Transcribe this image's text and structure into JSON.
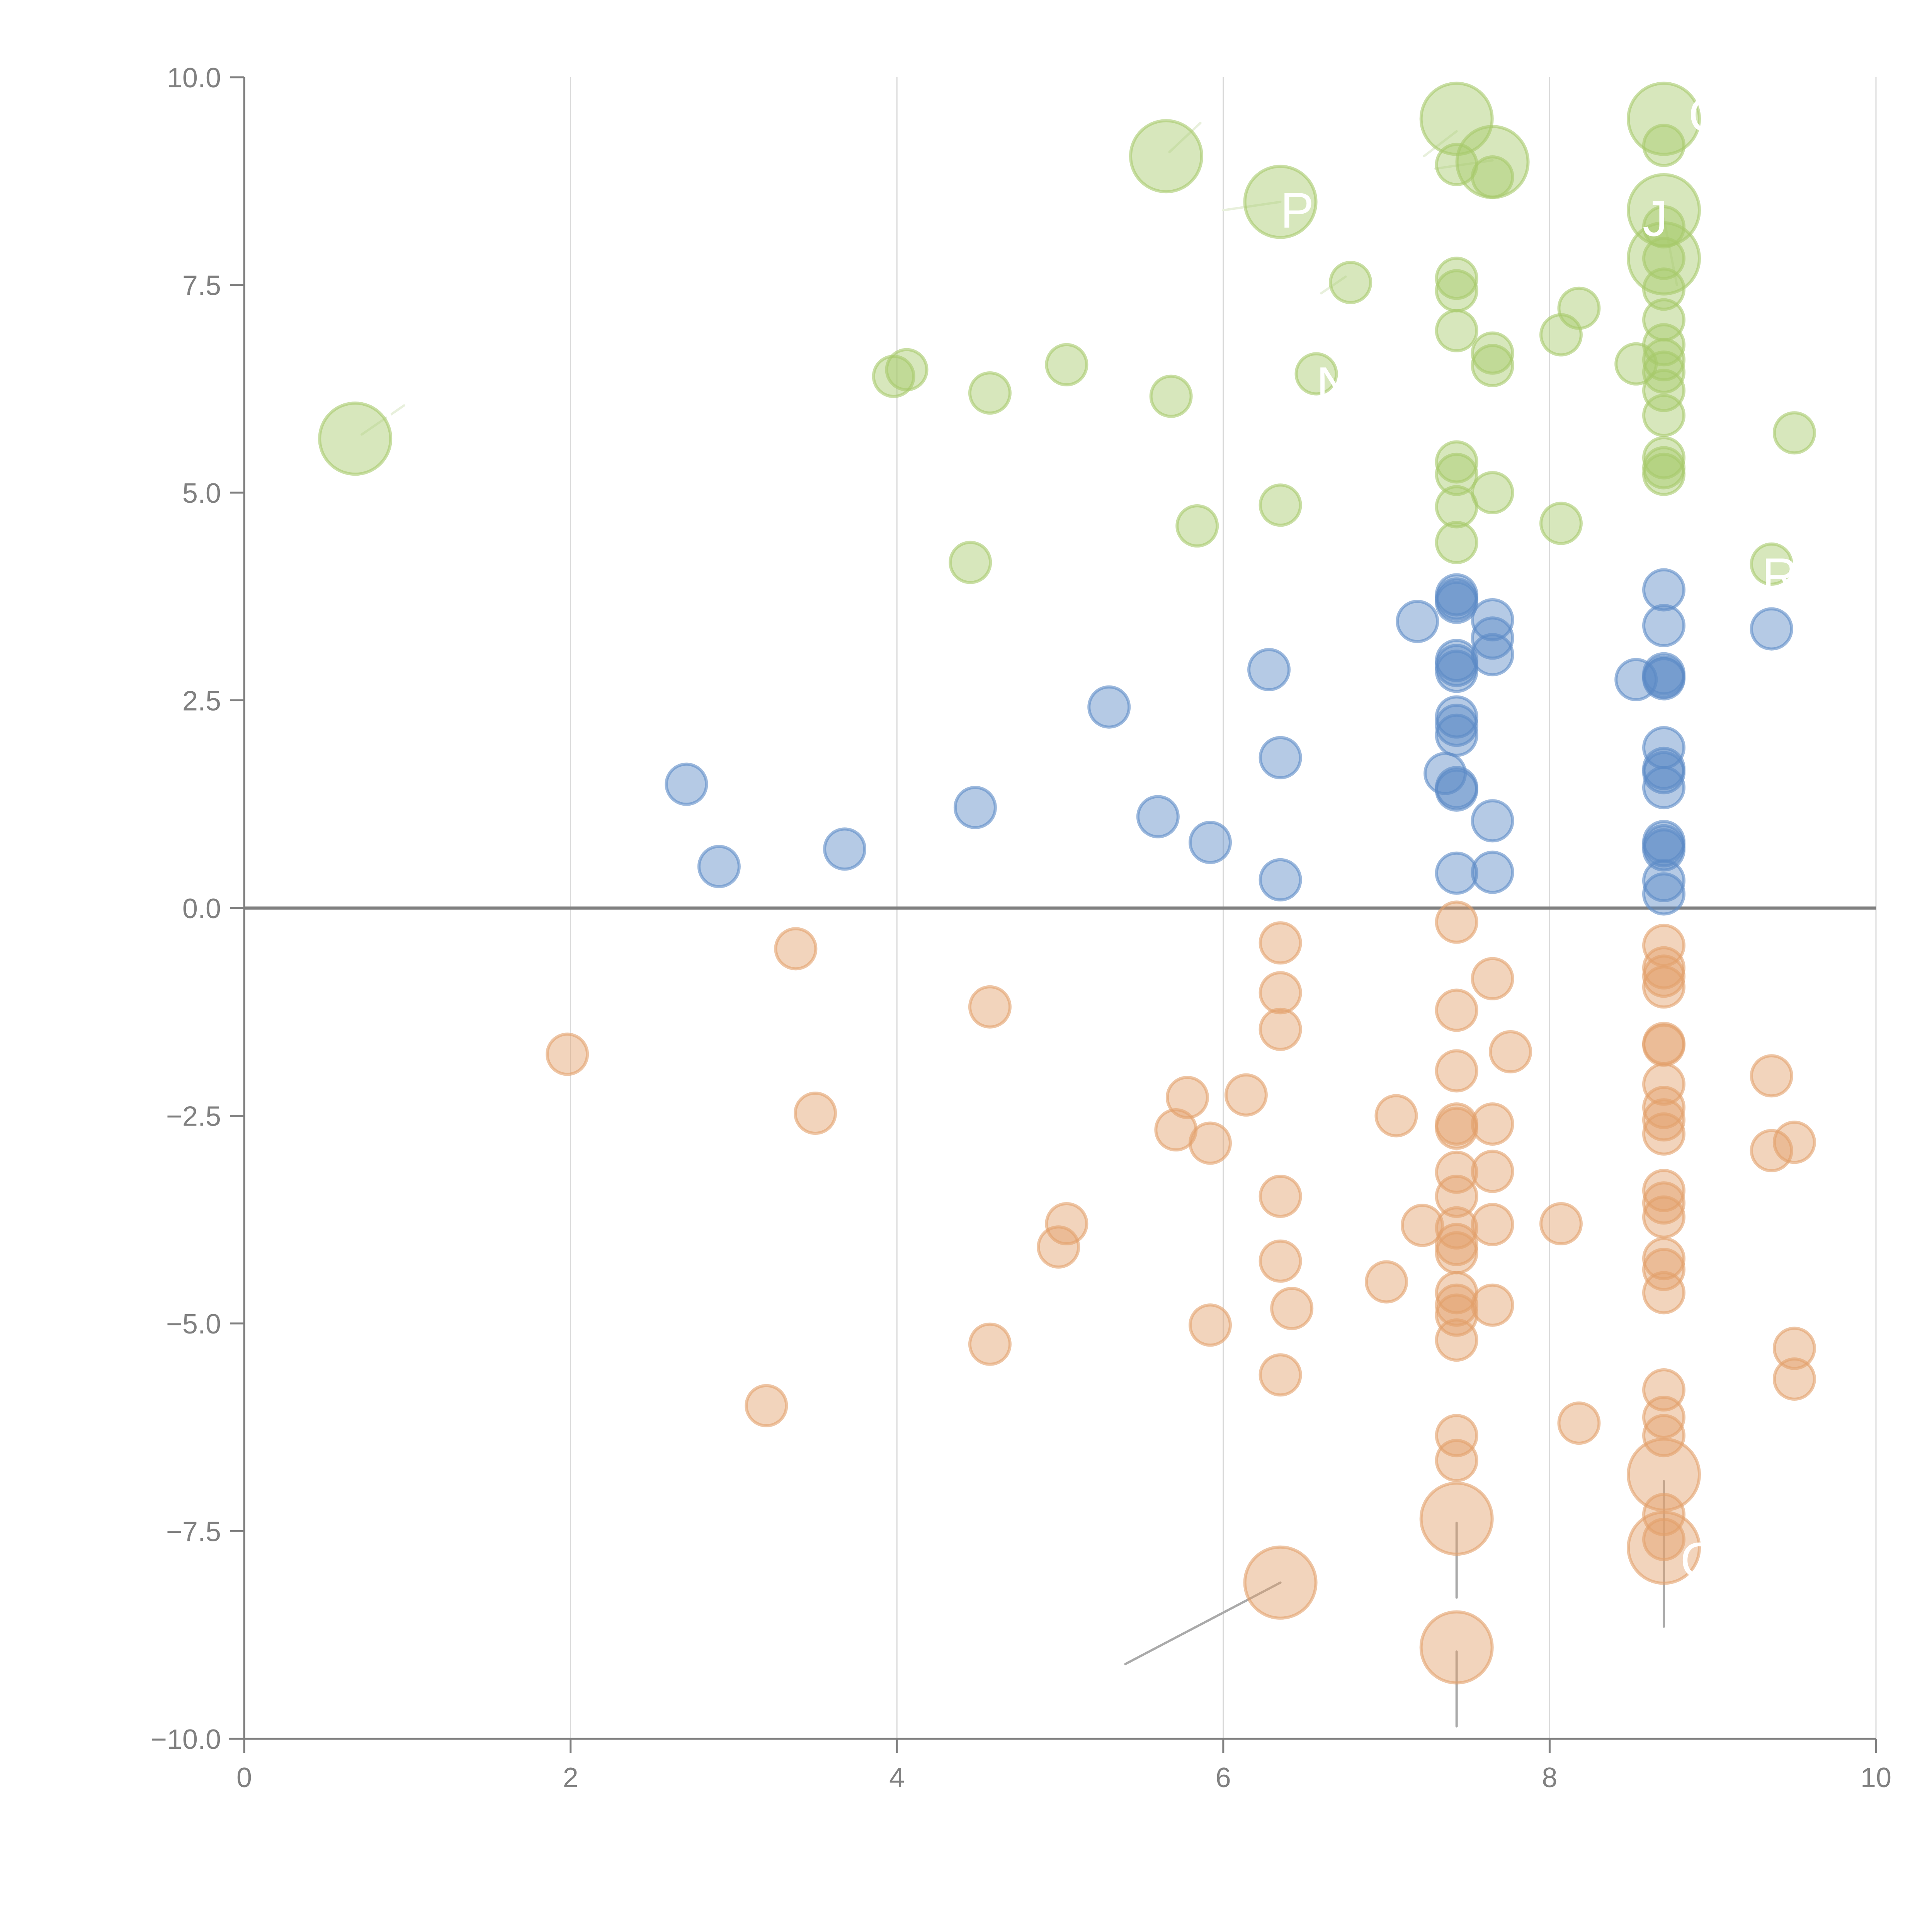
{
  "chart_data": {
    "type": "scatter",
    "title": "",
    "xlabel": "",
    "ylabel": "",
    "xlim": [
      0,
      10
    ],
    "ylim": [
      -10,
      10
    ],
    "x_ticks": [
      "0",
      "2",
      "4",
      "6",
      "8",
      "10"
    ],
    "x_tick_values": [
      0,
      2,
      4,
      6,
      8,
      10
    ],
    "y_ticks": [
      "10.0",
      "7.5",
      "5.0",
      "2.5",
      "0.0",
      "−2.5",
      "−5.0",
      "−7.5",
      "−10.0"
    ],
    "y_tick_values": [
      10,
      7.5,
      5,
      2.5,
      0,
      -2.5,
      -5,
      -7.5,
      -10
    ],
    "grid": "vertical lines at x ticks",
    "zero_line": true,
    "legend": "none",
    "colors": {
      "green": "#a6c96a",
      "blue": "#5b8ac6",
      "orange": "#e3a06a",
      "axis": "#808080",
      "grid": "#d9d9d9",
      "leader": "#aaaaaa",
      "label": "#ffffff"
    },
    "series": [
      {
        "name": "green",
        "color": "#a6c96a",
        "points": [
          [
            0.68,
            5.65,
            2
          ],
          [
            5.65,
            9.05,
            2
          ],
          [
            6.35,
            8.5,
            2
          ],
          [
            7.43,
            9.5,
            2
          ],
          [
            7.65,
            8.98,
            2
          ],
          [
            8.7,
            9.5,
            2
          ],
          [
            8.7,
            8.4,
            2
          ],
          [
            8.7,
            7.82,
            2
          ],
          [
            7.43,
            8.95,
            1
          ],
          [
            7.65,
            8.8,
            1
          ],
          [
            8.7,
            9.18,
            1
          ],
          [
            8.7,
            8.2,
            1
          ],
          [
            8.7,
            7.82,
            1
          ],
          [
            8.7,
            7.45,
            1
          ],
          [
            8.7,
            7.08,
            1
          ],
          [
            8.7,
            6.78,
            1
          ],
          [
            8.7,
            6.6,
            1
          ],
          [
            8.7,
            6.45,
            1
          ],
          [
            8.7,
            6.23,
            1
          ],
          [
            8.7,
            5.93,
            1
          ],
          [
            8.7,
            5.42,
            1
          ],
          [
            8.7,
            5.3,
            1
          ],
          [
            8.7,
            5.22,
            1
          ],
          [
            6.78,
            7.53,
            1
          ],
          [
            7.43,
            7.58,
            1
          ],
          [
            7.43,
            7.43,
            1
          ],
          [
            8.18,
            7.22,
            1
          ],
          [
            7.43,
            6.95,
            1
          ],
          [
            8.07,
            6.9,
            1
          ],
          [
            7.65,
            6.68,
            1
          ],
          [
            7.65,
            6.53,
            1
          ],
          [
            8.53,
            6.55,
            1
          ],
          [
            3.98,
            6.4,
            1
          ],
          [
            4.06,
            6.48,
            1
          ],
          [
            4.57,
            6.2,
            1
          ],
          [
            5.04,
            6.54,
            1
          ],
          [
            5.68,
            6.16,
            1
          ],
          [
            6.57,
            6.43,
            1
          ],
          [
            9.5,
            5.72,
            1
          ],
          [
            7.43,
            5.37,
            1
          ],
          [
            7.43,
            5.22,
            1
          ],
          [
            7.65,
            5.0,
            1
          ],
          [
            7.43,
            4.83,
            1
          ],
          [
            6.35,
            4.85,
            1
          ],
          [
            5.84,
            4.6,
            1
          ],
          [
            8.07,
            4.63,
            1
          ],
          [
            7.43,
            4.4,
            1
          ],
          [
            4.45,
            4.16,
            1
          ],
          [
            9.36,
            4.14,
            1
          ]
        ]
      },
      {
        "name": "blue",
        "color": "#5b8ac6",
        "points": [
          [
            7.43,
            3.77,
            1
          ],
          [
            7.43,
            3.72,
            1
          ],
          [
            7.43,
            3.68,
            1
          ],
          [
            7.19,
            3.45,
            1
          ],
          [
            7.65,
            3.47,
            1
          ],
          [
            7.65,
            3.25,
            1
          ],
          [
            7.65,
            3.05,
            1
          ],
          [
            7.43,
            2.98,
            1
          ],
          [
            7.43,
            2.92,
            1
          ],
          [
            7.43,
            2.85,
            1
          ],
          [
            6.28,
            2.87,
            1
          ],
          [
            5.3,
            2.42,
            1
          ],
          [
            7.43,
            2.3,
            1
          ],
          [
            7.43,
            2.2,
            1
          ],
          [
            7.43,
            2.08,
            1
          ],
          [
            7.36,
            1.62,
            1
          ],
          [
            7.43,
            1.45,
            1
          ],
          [
            7.43,
            1.42,
            1
          ],
          [
            7.65,
            1.05,
            1
          ],
          [
            7.43,
            0.42,
            1
          ],
          [
            7.65,
            0.43,
            1
          ],
          [
            8.7,
            3.83,
            1
          ],
          [
            8.7,
            3.4,
            1
          ],
          [
            8.53,
            2.75,
            1
          ],
          [
            8.7,
            2.82,
            1
          ],
          [
            8.7,
            2.78,
            1
          ],
          [
            8.7,
            2.76,
            1
          ],
          [
            9.36,
            3.36,
            1
          ],
          [
            8.7,
            1.93,
            1
          ],
          [
            8.7,
            1.68,
            1
          ],
          [
            8.7,
            1.63,
            1
          ],
          [
            8.7,
            1.45,
            1
          ],
          [
            8.7,
            0.8,
            1
          ],
          [
            8.7,
            0.75,
            1
          ],
          [
            8.7,
            0.7,
            1
          ],
          [
            8.7,
            0.33,
            1
          ],
          [
            8.7,
            0.17,
            1
          ],
          [
            2.71,
            1.49,
            1
          ],
          [
            2.91,
            0.5,
            1
          ],
          [
            3.68,
            0.71,
            1
          ],
          [
            4.48,
            1.21,
            1
          ],
          [
            5.6,
            1.1,
            1
          ],
          [
            5.92,
            0.79,
            1
          ],
          [
            6.35,
            1.81,
            1
          ],
          [
            6.35,
            0.34,
            1
          ]
        ]
      },
      {
        "name": "orange",
        "color": "#e3a06a",
        "points": [
          [
            7.43,
            -0.17,
            1
          ],
          [
            6.35,
            -0.42,
            1
          ],
          [
            6.35,
            -1.02,
            1
          ],
          [
            6.35,
            -1.46,
            1
          ],
          [
            3.38,
            -0.49,
            1
          ],
          [
            4.57,
            -1.19,
            1
          ],
          [
            1.98,
            -1.76,
            1
          ],
          [
            3.5,
            -2.47,
            1
          ],
          [
            7.65,
            -0.85,
            1
          ],
          [
            7.43,
            -1.23,
            1
          ],
          [
            7.76,
            -1.73,
            1
          ],
          [
            7.43,
            -1.96,
            1
          ],
          [
            7.06,
            -2.5,
            1
          ],
          [
            7.43,
            -2.6,
            1
          ],
          [
            7.43,
            -2.65,
            1
          ],
          [
            7.65,
            -2.6,
            1
          ],
          [
            7.43,
            -3.18,
            1
          ],
          [
            7.65,
            -3.17,
            1
          ],
          [
            7.43,
            -3.47,
            1
          ],
          [
            7.22,
            -3.82,
            1
          ],
          [
            7.43,
            -3.85,
            1
          ],
          [
            7.43,
            -4.05,
            1
          ],
          [
            7.43,
            -4.15,
            1
          ],
          [
            7.65,
            -3.81,
            1
          ],
          [
            7.0,
            -4.5,
            1
          ],
          [
            7.43,
            -4.63,
            1
          ],
          [
            7.43,
            -4.78,
            1
          ],
          [
            7.43,
            -4.9,
            1
          ],
          [
            7.65,
            -4.78,
            1
          ],
          [
            7.43,
            -5.2,
            1
          ],
          [
            7.43,
            -6.35,
            1
          ],
          [
            7.43,
            -6.65,
            1
          ],
          [
            5.78,
            -2.28,
            1
          ],
          [
            6.14,
            -2.25,
            1
          ],
          [
            5.71,
            -2.67,
            1
          ],
          [
            5.92,
            -2.83,
            1
          ],
          [
            6.35,
            -3.47,
            1
          ],
          [
            5.04,
            -3.8,
            1
          ],
          [
            4.99,
            -4.08,
            1
          ],
          [
            6.35,
            -4.25,
            1
          ],
          [
            6.42,
            -4.82,
            1
          ],
          [
            5.92,
            -5.02,
            1
          ],
          [
            4.57,
            -5.25,
            1
          ],
          [
            6.35,
            -5.62,
            1
          ],
          [
            3.2,
            -5.99,
            1
          ],
          [
            8.07,
            -3.8,
            1
          ],
          [
            8.18,
            -6.2,
            1
          ],
          [
            8.7,
            -0.45,
            1
          ],
          [
            8.7,
            -0.72,
            1
          ],
          [
            8.7,
            -0.82,
            1
          ],
          [
            8.7,
            -0.95,
            1
          ],
          [
            8.7,
            -1.63,
            1
          ],
          [
            8.7,
            -1.65,
            1
          ],
          [
            8.7,
            -2.12,
            1
          ],
          [
            8.7,
            -2.4,
            1
          ],
          [
            8.7,
            -2.55,
            1
          ],
          [
            8.7,
            -2.72,
            1
          ],
          [
            8.7,
            -3.4,
            1
          ],
          [
            8.7,
            -3.55,
            1
          ],
          [
            8.7,
            -3.72,
            1
          ],
          [
            8.7,
            -4.22,
            1
          ],
          [
            8.7,
            -4.35,
            1
          ],
          [
            8.7,
            -4.63,
            1
          ],
          [
            8.7,
            -5.8,
            1
          ],
          [
            8.7,
            -6.13,
            1
          ],
          [
            8.7,
            -6.35,
            1
          ],
          [
            8.7,
            -7.3,
            1
          ],
          [
            8.7,
            -7.6,
            1
          ],
          [
            9.36,
            -2.02,
            1
          ],
          [
            9.36,
            -2.92,
            1
          ],
          [
            9.5,
            -2.82,
            1
          ],
          [
            9.5,
            -5.3,
            1
          ],
          [
            9.5,
            -5.67,
            1
          ],
          [
            6.35,
            -8.12,
            2
          ],
          [
            7.43,
            -7.35,
            2
          ],
          [
            7.43,
            -8.9,
            2
          ],
          [
            8.7,
            -6.82,
            2
          ],
          [
            8.7,
            -7.7,
            2
          ]
        ]
      }
    ],
    "annotations": [
      {
        "text": "C",
        "x": 0.68,
        "y": 5.65,
        "lx": 0.85,
        "ly": 6.0,
        "color": "#ffffff"
      },
      {
        "text": "P",
        "x": 6.35,
        "y": 8.5,
        "lx": 6.35,
        "ly": 8.4,
        "color": "#ffffff"
      },
      {
        "text": "N",
        "x": 6.57,
        "y": 6.43,
        "lx": 6.57,
        "ly": 6.3,
        "color": "#ffffff"
      },
      {
        "text": "C",
        "x": 8.7,
        "y": 9.5,
        "lx": 8.85,
        "ly": 9.55,
        "color": "#ffffff"
      },
      {
        "text": "J",
        "x": 8.7,
        "y": 8.4,
        "lx": 8.57,
        "ly": 8.3,
        "color": "#ffffff"
      },
      {
        "text": "RI",
        "x": 9.36,
        "y": 4.14,
        "lx": 9.3,
        "ly": 4.0,
        "color": "#ffffff"
      },
      {
        "text": "C",
        "x": 8.7,
        "y": -7.6,
        "lx": 8.8,
        "ly": -7.85,
        "color": "#ffffff"
      }
    ],
    "leader_lines": [
      {
        "from": [
          6.35,
          -8.12
        ],
        "to": [
          5.4,
          -9.1
        ],
        "color": "#aaaaaa"
      },
      {
        "from": [
          7.43,
          -7.4
        ],
        "to": [
          7.43,
          -8.3
        ],
        "color": "#aaaaaa"
      },
      {
        "from": [
          7.43,
          -8.95
        ],
        "to": [
          7.43,
          -9.85
        ],
        "color": "#aaaaaa"
      },
      {
        "from": [
          8.7,
          -6.9
        ],
        "to": [
          8.7,
          -8.65
        ],
        "color": "#aaaaaa"
      },
      {
        "from": [
          0.72,
          5.7
        ],
        "to": [
          0.98,
          6.05
        ],
        "color": "#e8f0dc"
      },
      {
        "from": [
          5.67,
          9.1
        ],
        "to": [
          5.86,
          9.45
        ],
        "color": "#e8f0dc"
      },
      {
        "from": [
          6.35,
          8.5
        ],
        "to": [
          6.0,
          8.4
        ],
        "color": "#e8f0dc"
      },
      {
        "from": [
          7.43,
          9.35
        ],
        "to": [
          7.23,
          9.05
        ],
        "color": "#e8f0dc"
      },
      {
        "from": [
          7.65,
          9.0
        ],
        "to": [
          7.3,
          8.9
        ],
        "color": "#e8f0dc"
      },
      {
        "from": [
          8.7,
          8.3
        ],
        "to": [
          8.78,
          7.5
        ],
        "color": "#e8f0dc"
      },
      {
        "from": [
          6.6,
          7.4
        ],
        "to": [
          6.75,
          7.6
        ],
        "color": "#e8f0dc"
      }
    ]
  }
}
